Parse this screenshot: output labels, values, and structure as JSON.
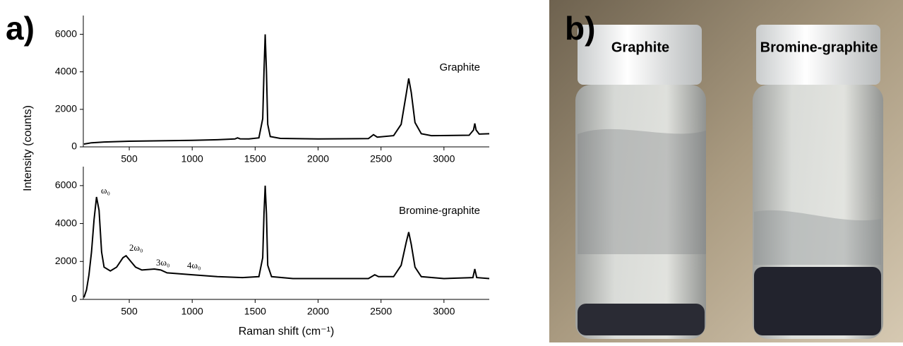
{
  "panel_labels": [
    "a)",
    "b)"
  ],
  "photo": {
    "labels": [
      "Graphite",
      "Bromine-graphite"
    ]
  },
  "chart_data": [
    {
      "type": "line",
      "ylabel": "Intensity (counts)",
      "xlim": [
        135,
        3360
      ],
      "xticks": [
        500,
        1000,
        1500,
        2000,
        2500,
        3000
      ],
      "ylim": [
        0,
        7000
      ],
      "yticks": [
        0,
        2000,
        4000,
        6000
      ],
      "x": [
        140,
        200,
        300,
        500,
        800,
        1000,
        1200,
        1340,
        1360,
        1380,
        1450,
        1530,
        1560,
        1570,
        1580,
        1590,
        1600,
        1620,
        1700,
        2000,
        2400,
        2440,
        2470,
        2600,
        2660,
        2700,
        2720,
        2740,
        2770,
        2820,
        2900,
        3200,
        3235,
        3245,
        3255,
        3280,
        3360
      ],
      "series": [
        {
          "name": "Graphite",
          "color": "#000000",
          "values": [
            150,
            220,
            260,
            300,
            330,
            350,
            380,
            420,
            480,
            430,
            420,
            480,
            1500,
            4000,
            6000,
            4000,
            1200,
            550,
            450,
            420,
            440,
            650,
            520,
            600,
            1200,
            2800,
            3650,
            2900,
            1300,
            700,
            600,
            620,
            900,
            1250,
            900,
            680,
            700
          ]
        }
      ]
    },
    {
      "type": "line",
      "xlabel": "Raman shift (cm⁻¹)",
      "annotations": [
        "ω₀",
        "2ω₀",
        "3ω₀",
        "4ω₀"
      ],
      "xlim": [
        135,
        3360
      ],
      "xticks": [
        500,
        1000,
        1500,
        2000,
        2500,
        3000
      ],
      "ylim": [
        0,
        7000
      ],
      "yticks": [
        0,
        2000,
        4000,
        6000
      ],
      "x": [
        140,
        160,
        180,
        200,
        220,
        240,
        260,
        280,
        300,
        350,
        400,
        450,
        475,
        500,
        550,
        600,
        700,
        750,
        800,
        900,
        1000,
        1200,
        1400,
        1530,
        1560,
        1570,
        1580,
        1590,
        1600,
        1630,
        1800,
        2400,
        2450,
        2480,
        2600,
        2660,
        2700,
        2720,
        2740,
        2770,
        2820,
        3000,
        3230,
        3245,
        3260,
        3360
      ],
      "series": [
        {
          "name": "Bromine-graphite",
          "color": "#000000",
          "values": [
            100,
            500,
            1300,
            2500,
            4200,
            5400,
            4700,
            2500,
            1700,
            1500,
            1700,
            2200,
            2300,
            2100,
            1700,
            1550,
            1600,
            1550,
            1400,
            1350,
            1300,
            1200,
            1150,
            1200,
            2200,
            4500,
            6000,
            4500,
            1800,
            1200,
            1100,
            1100,
            1300,
            1200,
            1200,
            1800,
            3000,
            3550,
            2900,
            1700,
            1200,
            1100,
            1150,
            1600,
            1150,
            1100
          ]
        }
      ]
    }
  ]
}
